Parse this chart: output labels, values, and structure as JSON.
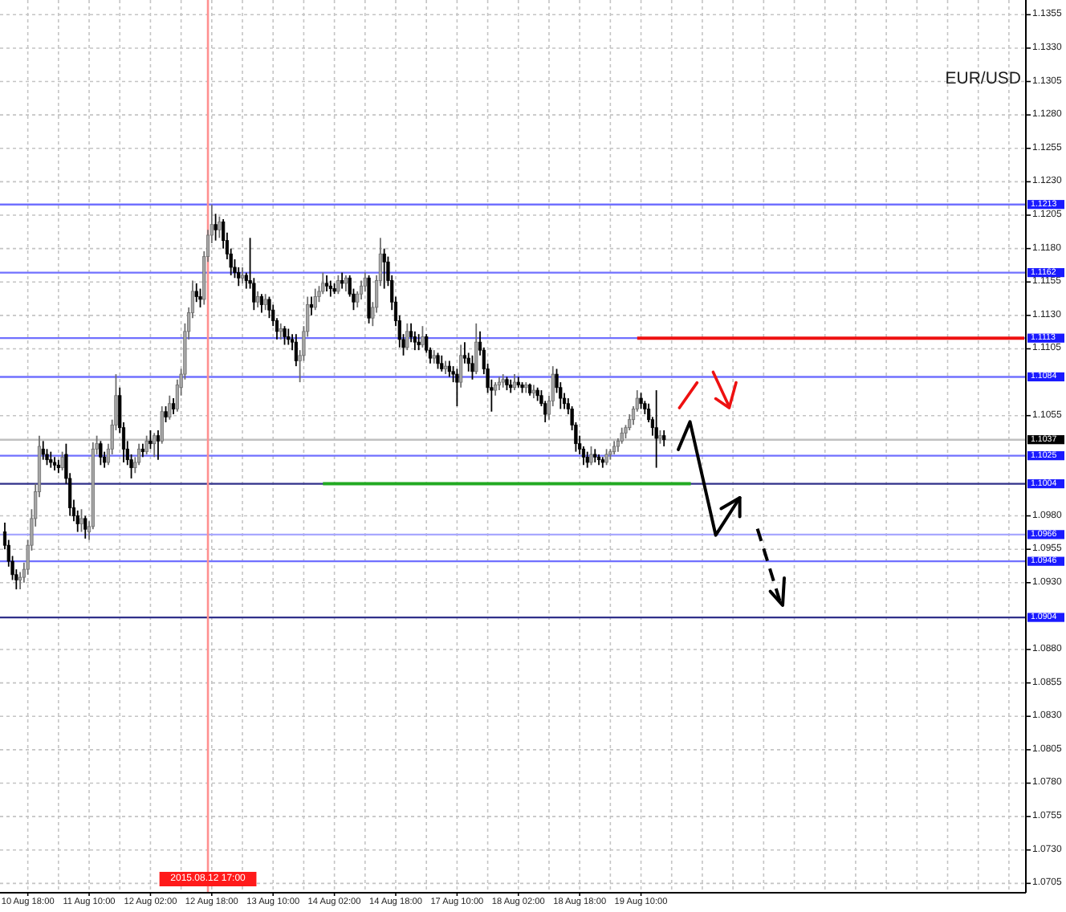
{
  "chart_data": {
    "type": "candlestick",
    "title": "EUR/USD",
    "categories": [
      null,
      null,
      null,
      null,
      null,
      null,
      "10 Aug 18:00",
      null,
      null,
      null,
      null,
      null,
      null,
      null,
      null,
      null,
      null,
      null,
      null,
      null,
      null,
      null,
      "11 Aug 10:00",
      null,
      null,
      null,
      null,
      null,
      null,
      null,
      null,
      null,
      null,
      null,
      null,
      null,
      null,
      null,
      "12 Aug 02:00",
      null,
      null,
      null,
      null,
      null,
      null,
      null,
      null,
      null,
      null,
      null,
      null,
      null,
      null,
      "2015.08.12 17:00",
      "12 Aug 18:00",
      null,
      null,
      null,
      null,
      null,
      null,
      null,
      null,
      null,
      null,
      null,
      null,
      null,
      null,
      null,
      "13 Aug 10:00",
      null,
      null,
      null,
      null,
      null,
      null,
      null,
      null,
      null,
      null,
      null,
      null,
      null,
      null,
      null,
      "14 Aug 02:00",
      null,
      null,
      null,
      null,
      null,
      null,
      null,
      null,
      null,
      null,
      null,
      null,
      null,
      null,
      null,
      "14 Aug 18:00",
      null,
      null,
      null,
      null,
      null,
      null,
      null,
      null,
      null,
      null,
      null,
      null,
      null,
      null,
      null,
      "17 Aug 10:00",
      null,
      null,
      null,
      null,
      null,
      null,
      null,
      null,
      null,
      null,
      null,
      null,
      null,
      null,
      null,
      "18 Aug 02:00",
      null,
      null,
      null,
      null,
      null,
      null,
      null,
      null,
      null,
      null,
      null,
      null,
      null,
      null,
      null,
      "18 Aug 18:00",
      null,
      null,
      null,
      null,
      null,
      null,
      null,
      null,
      null,
      null,
      null,
      null,
      null,
      null,
      null,
      "19 Aug 10:00",
      null,
      null,
      null,
      null,
      null,
      null,
      null,
      null,
      null,
      null,
      null,
      null,
      null,
      null,
      null,
      null,
      null,
      null,
      null,
      null,
      null,
      null,
      null,
      null,
      null,
      null,
      null,
      null,
      null,
      null,
      null,
      null,
      null,
      null,
      null,
      null,
      null,
      null,
      null,
      null,
      null,
      null,
      null,
      null,
      null,
      null,
      null,
      null,
      null,
      null,
      null,
      null,
      null,
      null,
      null,
      null,
      null,
      null,
      null,
      null,
      null,
      null,
      null,
      null,
      null,
      null,
      null,
      null,
      null,
      null,
      null,
      null,
      null,
      null,
      null,
      null,
      null,
      null,
      null,
      null,
      null,
      null,
      null,
      null,
      null,
      null,
      null,
      null,
      null,
      null,
      null,
      null,
      null,
      null,
      null,
      null,
      null,
      null,
      null,
      null
    ],
    "ohlc": [
      [
        1.0968,
        1.0975,
        1.0955,
        1.0958
      ],
      [
        1.0958,
        1.0962,
        1.0942,
        1.0946
      ],
      [
        1.0946,
        1.095,
        1.0932,
        1.0936
      ],
      [
        1.0936,
        1.094,
        1.0925,
        1.0932
      ],
      [
        1.0932,
        1.0938,
        1.0925,
        1.0934
      ],
      [
        1.0934,
        1.0945,
        1.093,
        1.094
      ],
      [
        1.094,
        1.0962,
        1.0936,
        1.0958
      ],
      [
        1.0958,
        1.0985,
        1.0954,
        1.0978
      ],
      [
        1.0978,
        1.1004,
        1.0972,
        1.0998
      ],
      [
        1.0998,
        1.104,
        1.0994,
        1.1032
      ],
      [
        1.103,
        1.1036,
        1.1022,
        1.1026
      ],
      [
        1.1026,
        1.103,
        1.1018,
        1.1022
      ],
      [
        1.1022,
        1.1028,
        1.1016,
        1.102
      ],
      [
        1.102,
        1.1024,
        1.1014,
        1.1018
      ],
      [
        1.1018,
        1.1022,
        1.1012,
        1.1016
      ],
      [
        1.1016,
        1.1028,
        1.1014,
        1.1024
      ],
      [
        1.1026,
        1.1034,
        1.1004,
        1.1008
      ],
      [
        1.1008,
        1.1012,
        1.098,
        1.0986
      ],
      [
        1.0986,
        1.0992,
        1.0976,
        1.098
      ],
      [
        1.098,
        1.0984,
        1.0968,
        1.0974
      ],
      [
        1.0974,
        1.0985,
        1.0968,
        1.0978
      ],
      [
        1.0978,
        1.098,
        1.0963,
        1.097
      ],
      [
        1.0968,
        1.0976,
        1.0962,
        1.0972
      ],
      [
        1.0972,
        1.1035,
        1.097,
        1.103
      ],
      [
        1.103,
        1.104,
        1.1026,
        1.1034
      ],
      [
        1.1034,
        1.1036,
        1.1018,
        1.1024
      ],
      [
        1.1024,
        1.1028,
        1.1016,
        1.102
      ],
      [
        1.102,
        1.1034,
        1.1018,
        1.103
      ],
      [
        1.103,
        1.1052,
        1.1026,
        1.1048
      ],
      [
        1.1048,
        1.1086,
        1.1044,
        1.107
      ],
      [
        1.107,
        1.1076,
        1.1042,
        1.1046
      ],
      [
        1.1046,
        1.105,
        1.102,
        1.103
      ],
      [
        1.103,
        1.1036,
        1.1018,
        1.1022
      ],
      [
        1.1022,
        1.1026,
        1.1008,
        1.1016
      ],
      [
        1.1016,
        1.1024,
        1.1012,
        1.102
      ],
      [
        1.102,
        1.1034,
        1.1018,
        1.103
      ],
      [
        1.103,
        1.1034,
        1.1024,
        1.1028
      ],
      [
        1.1028,
        1.104,
        1.1026,
        1.1036
      ],
      [
        1.1036,
        1.1044,
        1.103,
        1.1034
      ],
      [
        1.1034,
        1.1042,
        1.1024,
        1.104
      ],
      [
        1.104,
        1.1044,
        1.1022,
        1.1036
      ],
      [
        1.1036,
        1.1062,
        1.1034,
        1.1058
      ],
      [
        1.1058,
        1.1062,
        1.105,
        1.1054
      ],
      [
        1.1054,
        1.107,
        1.1052,
        1.1064
      ],
      [
        1.1064,
        1.1068,
        1.1056,
        1.106
      ],
      [
        1.106,
        1.1082,
        1.1058,
        1.1078
      ],
      [
        1.1076,
        1.109,
        1.107,
        1.1086
      ],
      [
        1.1086,
        1.1124,
        1.1082,
        1.1118
      ],
      [
        1.1118,
        1.1136,
        1.1112,
        1.1132
      ],
      [
        1.1132,
        1.1156,
        1.1128,
        1.1148
      ],
      [
        1.1148,
        1.1154,
        1.114,
        1.1144
      ],
      [
        1.1144,
        1.115,
        1.1136,
        1.1142
      ],
      [
        1.1142,
        1.1178,
        1.1138,
        1.1174
      ],
      [
        1.1174,
        1.1194,
        1.117,
        1.119
      ],
      [
        1.119,
        1.1213,
        1.1184,
        1.1198
      ],
      [
        1.1198,
        1.1206,
        1.1186,
        1.1194
      ],
      [
        1.1194,
        1.1204,
        1.1188,
        1.12
      ],
      [
        1.12,
        1.1202,
        1.118,
        1.1186
      ],
      [
        1.1186,
        1.1192,
        1.1172,
        1.1176
      ],
      [
        1.1176,
        1.118,
        1.116,
        1.1166
      ],
      [
        1.1166,
        1.1172,
        1.1158,
        1.1162
      ],
      [
        1.1162,
        1.1166,
        1.1152,
        1.1158
      ],
      [
        1.1158,
        1.1166,
        1.1154,
        1.116
      ],
      [
        1.116,
        1.1162,
        1.115,
        1.1156
      ],
      [
        1.1156,
        1.1188,
        1.115,
        1.1154
      ],
      [
        1.1154,
        1.1158,
        1.1134,
        1.114
      ],
      [
        1.114,
        1.1148,
        1.1136,
        1.1144
      ],
      [
        1.1144,
        1.1146,
        1.1132,
        1.1138
      ],
      [
        1.1138,
        1.1146,
        1.1134,
        1.1142
      ],
      [
        1.1142,
        1.1144,
        1.1128,
        1.1134
      ],
      [
        1.1134,
        1.1138,
        1.1122,
        1.1126
      ],
      [
        1.1126,
        1.1128,
        1.1112,
        1.1118
      ],
      [
        1.1118,
        1.1124,
        1.1112,
        1.112
      ],
      [
        1.112,
        1.1122,
        1.1108,
        1.1114
      ],
      [
        1.1114,
        1.112,
        1.1108,
        1.1112
      ],
      [
        1.1112,
        1.1116,
        1.1104,
        1.111
      ],
      [
        1.111,
        1.1116,
        1.1092,
        1.1096
      ],
      [
        1.1096,
        1.1104,
        1.108,
        1.11
      ],
      [
        1.11,
        1.1122,
        1.1096,
        1.1118
      ],
      [
        1.1118,
        1.1144,
        1.1114,
        1.1138
      ],
      [
        1.1138,
        1.1144,
        1.113,
        1.1136
      ],
      [
        1.1136,
        1.115,
        1.1134,
        1.1144
      ],
      [
        1.1144,
        1.1152,
        1.114,
        1.1148
      ],
      [
        1.1148,
        1.1162,
        1.1146,
        1.1154
      ],
      [
        1.1154,
        1.116,
        1.1148,
        1.1152
      ],
      [
        1.1152,
        1.1156,
        1.1144,
        1.115
      ],
      [
        1.115,
        1.1154,
        1.1146,
        1.1148
      ],
      [
        1.1148,
        1.116,
        1.1146,
        1.1156
      ],
      [
        1.1156,
        1.1162,
        1.115,
        1.1154
      ],
      [
        1.1154,
        1.116,
        1.1148,
        1.1158
      ],
      [
        1.1158,
        1.116,
        1.1144,
        1.1146
      ],
      [
        1.1146,
        1.115,
        1.1134,
        1.114
      ],
      [
        1.114,
        1.1148,
        1.1136,
        1.1146
      ],
      [
        1.1146,
        1.1156,
        1.1142,
        1.1152
      ],
      [
        1.1152,
        1.1162,
        1.1148,
        1.1158
      ],
      [
        1.1158,
        1.116,
        1.1124,
        1.1128
      ],
      [
        1.1128,
        1.114,
        1.1122,
        1.1136
      ],
      [
        1.1136,
        1.116,
        1.1132,
        1.1156
      ],
      [
        1.1156,
        1.1188,
        1.1152,
        1.1176
      ],
      [
        1.1176,
        1.118,
        1.115,
        1.117
      ],
      [
        1.117,
        1.1174,
        1.1152,
        1.1156
      ],
      [
        1.1156,
        1.116,
        1.1134,
        1.114
      ],
      [
        1.114,
        1.1144,
        1.1122,
        1.1126
      ],
      [
        1.1126,
        1.113,
        1.1106,
        1.1112
      ],
      [
        1.1112,
        1.1116,
        1.11,
        1.1106
      ],
      [
        1.1106,
        1.1124,
        1.1104,
        1.1118
      ],
      [
        1.1118,
        1.1124,
        1.111,
        1.1114
      ],
      [
        1.1114,
        1.1118,
        1.1104,
        1.111
      ],
      [
        1.111,
        1.1116,
        1.1104,
        1.1108
      ],
      [
        1.1108,
        1.1122,
        1.1106,
        1.1114
      ],
      [
        1.1114,
        1.1116,
        1.1102,
        1.1104
      ],
      [
        1.1104,
        1.1106,
        1.1094,
        1.1098
      ],
      [
        1.1098,
        1.1104,
        1.1094,
        1.11
      ],
      [
        1.11,
        1.1102,
        1.109,
        1.1094
      ],
      [
        1.1094,
        1.11,
        1.1088,
        1.109
      ],
      [
        1.109,
        1.1096,
        1.1086,
        1.1092
      ],
      [
        1.1092,
        1.1096,
        1.1084,
        1.1088
      ],
      [
        1.1088,
        1.1092,
        1.108,
        1.1086
      ],
      [
        1.1086,
        1.109,
        1.1062,
        1.108
      ],
      [
        1.108,
        1.1108,
        1.1076,
        1.11
      ],
      [
        1.11,
        1.111,
        1.1094,
        1.1098
      ],
      [
        1.1098,
        1.1102,
        1.1088,
        1.1094
      ],
      [
        1.1094,
        1.11,
        1.1082,
        1.1088
      ],
      [
        1.1088,
        1.1124,
        1.1086,
        1.111
      ],
      [
        1.111,
        1.1118,
        1.11,
        1.1104
      ],
      [
        1.1104,
        1.1106,
        1.1086,
        1.109
      ],
      [
        1.109,
        1.1094,
        1.1072,
        1.1076
      ],
      [
        1.1076,
        1.1082,
        1.1058,
        1.1074
      ],
      [
        1.1074,
        1.108,
        1.107,
        1.1078
      ],
      [
        1.1078,
        1.1084,
        1.1074,
        1.108
      ],
      [
        1.108,
        1.1086,
        1.1076,
        1.1082
      ],
      [
        1.1082,
        1.1084,
        1.1074,
        1.1078
      ],
      [
        1.1078,
        1.1082,
        1.1072,
        1.1076
      ],
      [
        1.1076,
        1.1086,
        1.1074,
        1.108
      ],
      [
        1.108,
        1.1084,
        1.1076,
        1.1078
      ],
      [
        1.1078,
        1.108,
        1.1072,
        1.1076
      ],
      [
        1.1076,
        1.108,
        1.1072,
        1.1078
      ],
      [
        1.1078,
        1.1079,
        1.107,
        1.1072
      ],
      [
        1.1072,
        1.1078,
        1.1068,
        1.1074
      ],
      [
        1.1074,
        1.1076,
        1.1066,
        1.107
      ],
      [
        1.107,
        1.1074,
        1.1062,
        1.1064
      ],
      [
        1.1064,
        1.1066,
        1.105,
        1.1056
      ],
      [
        1.1056,
        1.107,
        1.1052,
        1.1066
      ],
      [
        1.1066,
        1.1092,
        1.1062,
        1.1086
      ],
      [
        1.1086,
        1.109,
        1.1072,
        1.1076
      ],
      [
        1.1076,
        1.108,
        1.106,
        1.1068
      ],
      [
        1.1068,
        1.1072,
        1.106,
        1.1064
      ],
      [
        1.1064,
        1.1068,
        1.1056,
        1.106
      ],
      [
        1.106,
        1.1062,
        1.1044,
        1.1048
      ],
      [
        1.1048,
        1.105,
        1.1028,
        1.1034
      ],
      [
        1.1034,
        1.104,
        1.1026,
        1.103
      ],
      [
        1.103,
        1.1032,
        1.1018,
        1.1024
      ],
      [
        1.1024,
        1.1028,
        1.1016,
        1.102
      ],
      [
        1.102,
        1.1032,
        1.1018,
        1.1026
      ],
      [
        1.1026,
        1.103,
        1.102,
        1.1024
      ],
      [
        1.1024,
        1.1026,
        1.1018,
        1.1022
      ],
      [
        1.1022,
        1.1024,
        1.1016,
        1.102
      ],
      [
        1.102,
        1.103,
        1.1018,
        1.1026
      ],
      [
        1.1026,
        1.103,
        1.1022,
        1.1028
      ],
      [
        1.1028,
        1.1036,
        1.1026,
        1.1032
      ],
      [
        1.1032,
        1.1038,
        1.1028,
        1.1036
      ],
      [
        1.1036,
        1.1046,
        1.1034,
        1.1042
      ],
      [
        1.1042,
        1.1048,
        1.1038,
        1.1046
      ],
      [
        1.1046,
        1.1056,
        1.1044,
        1.1052
      ],
      [
        1.1052,
        1.1062,
        1.1048,
        1.106
      ],
      [
        1.106,
        1.1074,
        1.1058,
        1.1068
      ],
      [
        1.1068,
        1.1072,
        1.106,
        1.1064
      ],
      [
        1.1064,
        1.1066,
        1.1056,
        1.106
      ],
      [
        1.106,
        1.1064,
        1.105,
        1.1052
      ],
      [
        1.1052,
        1.1054,
        1.104,
        1.1046
      ],
      [
        1.1046,
        1.1074,
        1.1016,
        1.1038
      ],
      [
        1.1038,
        1.1044,
        1.1034,
        1.104
      ],
      [
        1.104,
        1.1044,
        1.1032,
        1.1037
      ],
      null,
      null,
      null,
      null,
      null,
      null,
      null,
      null,
      null,
      null,
      null,
      null,
      null,
      null,
      null,
      null,
      null,
      null,
      null,
      null,
      null,
      null,
      null,
      null,
      null,
      null,
      null,
      null,
      null,
      null,
      null,
      null,
      null,
      null,
      null,
      null,
      null,
      null,
      null,
      null,
      null,
      null,
      null,
      null,
      null,
      null,
      null,
      null,
      null,
      null,
      null,
      null,
      null,
      null,
      null,
      null,
      null,
      null,
      null,
      null,
      null,
      null,
      null,
      null,
      null,
      null,
      null,
      null,
      null,
      null,
      null,
      null,
      null,
      null,
      null,
      null,
      null,
      null,
      null,
      null,
      null,
      null,
      null,
      null,
      null,
      null,
      null,
      null,
      null,
      null,
      null,
      null,
      null,
      null
    ],
    "series": [
      {
        "type": "line",
        "color": "#22aa22",
        "values": [
          null,
          null,
          null,
          null,
          null,
          null,
          null,
          null,
          null,
          null,
          null,
          null,
          null,
          null,
          null,
          null,
          null,
          null,
          null,
          null,
          null,
          null,
          null,
          null,
          null,
          null,
          null,
          null,
          null,
          null,
          null,
          null,
          null,
          null,
          null,
          null,
          null,
          null,
          null,
          null,
          null,
          null,
          null,
          null,
          null,
          null,
          null,
          null,
          null,
          null,
          null,
          null,
          null,
          null,
          null,
          null,
          null,
          null,
          null,
          null,
          null,
          null,
          null,
          null,
          null,
          null,
          null,
          null,
          null,
          null,
          null,
          null,
          null,
          null,
          null,
          null,
          null,
          null,
          null,
          null,
          null,
          null,
          null,
          1.1004,
          1.1004,
          1.1004,
          1.1004,
          1.1004,
          1.1004,
          1.1004,
          1.1004,
          1.1004,
          1.1004,
          1.1004,
          1.1004,
          1.1004,
          1.1004,
          1.1004,
          1.1004,
          1.1004,
          1.1004,
          1.1004,
          1.1004,
          1.1004,
          1.1004,
          1.1004,
          1.1004,
          1.1004,
          1.1004,
          1.1004,
          1.1004,
          1.1004,
          1.1004,
          1.1004,
          1.1004,
          1.1004,
          1.1004,
          1.1004,
          1.1004,
          1.1004,
          1.1004,
          1.1004,
          1.1004,
          1.1004,
          1.1004,
          1.1004,
          1.1004,
          1.1004,
          1.1004,
          1.1004,
          1.1004,
          1.1004,
          1.1004,
          1.1004,
          1.1004,
          1.1004,
          1.1004,
          1.1004,
          1.1004,
          1.1004,
          1.1004,
          1.1004,
          1.1004,
          1.1004,
          1.1004,
          1.1004,
          1.1004,
          1.1004,
          1.1004,
          1.1004,
          1.1004,
          1.1004,
          1.1004,
          1.1004,
          1.1004,
          1.1004,
          1.1004,
          1.1004,
          1.1004,
          1.1004,
          1.1004,
          1.1004,
          1.1004,
          1.1004,
          1.1004,
          1.1004,
          1.1004,
          1.1004,
          1.1004,
          1.1004,
          1.1004,
          1.1004,
          1.1004,
          1.1004,
          1.1004,
          1.1004,
          1.1004,
          1.1004,
          1.1004,
          1.1004,
          null,
          null,
          null,
          null,
          null,
          null,
          null,
          null,
          null,
          null,
          null,
          null,
          null,
          null,
          null,
          null,
          null,
          null,
          null,
          null,
          null,
          null,
          null,
          null,
          null,
          null,
          null,
          null,
          null,
          null,
          null,
          null,
          null,
          null,
          null,
          null,
          null,
          null,
          null,
          null,
          null,
          null,
          null,
          null,
          null,
          null,
          null,
          null,
          null,
          null,
          null,
          null,
          null,
          null,
          null,
          null,
          null,
          null,
          null,
          null,
          null,
          null,
          null,
          null,
          null,
          null,
          null,
          null,
          null,
          null,
          null,
          null,
          null,
          null,
          null,
          null,
          null,
          null,
          null,
          null,
          null,
          null,
          null,
          null,
          null,
          null,
          null
        ]
      },
      {
        "type": "line",
        "color": "#ee1111",
        "values": [
          null,
          null,
          null,
          null,
          null,
          null,
          null,
          null,
          null,
          null,
          null,
          null,
          null,
          null,
          null,
          null,
          null,
          null,
          null,
          null,
          null,
          null,
          null,
          null,
          null,
          null,
          null,
          null,
          null,
          null,
          null,
          null,
          null,
          null,
          null,
          null,
          null,
          null,
          null,
          null,
          null,
          null,
          null,
          null,
          null,
          null,
          null,
          null,
          null,
          null,
          null,
          null,
          null,
          null,
          null,
          null,
          null,
          null,
          null,
          null,
          null,
          null,
          null,
          null,
          null,
          null,
          null,
          null,
          null,
          null,
          null,
          null,
          null,
          null,
          null,
          null,
          null,
          null,
          null,
          null,
          null,
          null,
          null,
          null,
          null,
          null,
          null,
          null,
          null,
          null,
          null,
          null,
          null,
          null,
          null,
          null,
          null,
          null,
          null,
          null,
          null,
          null,
          null,
          null,
          null,
          null,
          null,
          null,
          null,
          null,
          null,
          null,
          null,
          null,
          null,
          null,
          null,
          null,
          null,
          null,
          null,
          null,
          null,
          null,
          null,
          null,
          null,
          null,
          null,
          null,
          null,
          null,
          null,
          null,
          null,
          null,
          null,
          null,
          null,
          null,
          null,
          null,
          null,
          null,
          null,
          null,
          null,
          null,
          null,
          null,
          null,
          null,
          null,
          null,
          null,
          null,
          null,
          null,
          null,
          null,
          null,
          null,
          null,
          null,
          null,
          1.1113,
          1.1113,
          1.1113,
          1.1113,
          1.1113,
          1.1113,
          1.1113,
          1.1113,
          1.1113,
          1.1113,
          1.1113,
          1.1113,
          1.1113,
          1.1113,
          1.1113,
          1.1113,
          1.1113,
          1.1113,
          1.1113,
          1.1113,
          1.1113,
          1.1113,
          1.1113,
          1.1113,
          1.1113,
          1.1113,
          1.1113,
          1.1113,
          1.1113,
          1.1113,
          1.1113,
          1.1113,
          1.1113,
          1.1113,
          1.1113,
          1.1113,
          1.1113,
          1.1113,
          1.1113,
          1.1113,
          1.1113,
          1.1113,
          1.1113,
          1.1113,
          1.1113,
          1.1113,
          1.1113,
          1.1113,
          1.1113,
          1.1113,
          1.1113,
          1.1113,
          1.1113,
          1.1113,
          1.1113,
          1.1113,
          1.1113,
          1.1113,
          1.1113,
          1.1113,
          1.1113,
          1.1113,
          1.1113,
          1.1113,
          1.1113,
          1.1113,
          1.1113,
          1.1113,
          1.1113,
          1.1113,
          1.1113,
          1.1113,
          1.1113,
          1.1113,
          1.1113,
          1.1113,
          1.1113,
          1.1113,
          1.1113,
          1.1113,
          1.1113,
          1.1113,
          1.1113,
          1.1113,
          1.1113,
          1.1113,
          1.1113,
          1.1113,
          1.1113,
          1.1113,
          1.1113,
          1.1113,
          1.1113,
          1.1113,
          1.1113,
          1.1113,
          1.1113,
          1.1113,
          1.1113,
          1.1113,
          1.1113,
          1.1113
        ]
      }
    ],
    "ylim": [
      1.0698,
      1.1366
    ],
    "yticks": [
      1.1355,
      {
        "value": 1.133,
        "label": "1.1330"
      },
      1.1305,
      {
        "value": 1.128,
        "label": "1.1280"
      },
      1.1255,
      {
        "value": 1.123,
        "label": "1.1230"
      },
      1.1205,
      {
        "value": 1.118,
        "label": "1.1180"
      },
      1.1155,
      {
        "value": 1.113,
        "label": "1.1130"
      },
      1.1105,
      1.1055,
      {
        "value": 1.098,
        "label": "1.0980"
      },
      1.0955,
      {
        "value": 1.093,
        "label": "1.0930"
      },
      {
        "value": 1.088,
        "label": "1.0880"
      },
      1.0855,
      {
        "value": 1.083,
        "label": "1.0830"
      },
      1.0805,
      {
        "value": 1.078,
        "label": "1.0780"
      },
      1.0755,
      {
        "value": 1.073,
        "label": "1.0730"
      },
      1.0705
    ],
    "grid": true,
    "ref_lines": [
      {
        "axis": "y",
        "value": 1.1213,
        "label": "1.1213",
        "color": "#7070ff"
      },
      {
        "axis": "y",
        "value": 1.1162,
        "label": "1.1162",
        "color": "#7070ff"
      },
      {
        "axis": "y",
        "value": 1.1113,
        "label": "1.1113",
        "color": "#7070ff"
      },
      {
        "axis": "y",
        "value": 1.1084,
        "label": "1.1084",
        "color": "#7070ff"
      },
      {
        "axis": "y",
        "value": 1.1037,
        "label": "1.1037",
        "color": "#c0c0c0"
      },
      {
        "axis": "y",
        "value": 1.1025,
        "label": "1.1025",
        "color": "#7070ff"
      },
      {
        "axis": "y",
        "value": 1.1004,
        "label": "1.1004",
        "color": "#30308a"
      },
      {
        "axis": "y",
        "value": 1.0966,
        "label": "1.0966",
        "color": "#a8a8ff"
      },
      {
        "axis": "y",
        "value": 1.0946,
        "label": "1.0946",
        "color": "#7070ff"
      },
      {
        "axis": "y",
        "value": 1.0904,
        "label": "1.0904",
        "color": "#30308a"
      },
      {
        "axis": "x",
        "value": "2015.08.12 17:00",
        "color": "#ff9090"
      }
    ]
  }
}
